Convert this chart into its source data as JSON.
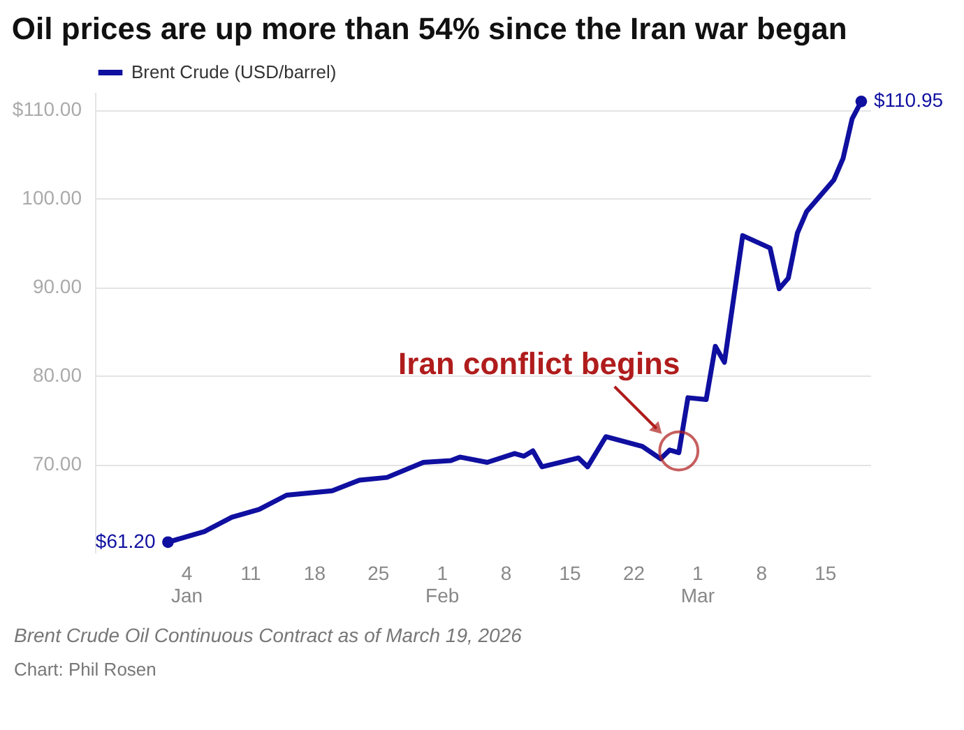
{
  "chart_data": {
    "type": "line",
    "title": "Oil prices are up more than 54% since the Iran war began",
    "x": [
      "2026-01-02",
      "2026-01-06",
      "2026-01-09",
      "2026-01-12",
      "2026-01-15",
      "2026-01-20",
      "2026-01-23",
      "2026-01-26",
      "2026-01-30",
      "2026-02-02",
      "2026-02-03",
      "2026-02-06",
      "2026-02-09",
      "2026-02-10",
      "2026-02-11",
      "2026-02-12",
      "2026-02-16",
      "2026-02-17",
      "2026-02-19",
      "2026-02-23",
      "2026-02-25",
      "2026-02-26",
      "2026-02-27",
      "2026-02-28",
      "2026-03-02",
      "2026-03-03",
      "2026-03-04",
      "2026-03-06",
      "2026-03-09",
      "2026-03-10",
      "2026-03-11",
      "2026-03-12",
      "2026-03-13",
      "2026-03-16",
      "2026-03-17",
      "2026-03-18",
      "2026-03-19"
    ],
    "series": [
      {
        "name": "Brent Crude (USD/barrel)",
        "color": "#0f0fa0",
        "values": [
          61.2,
          62.4,
          64.0,
          64.9,
          66.5,
          67.0,
          68.2,
          68.5,
          70.2,
          70.4,
          70.8,
          70.2,
          71.2,
          70.9,
          71.5,
          69.7,
          70.7,
          69.7,
          73.1,
          72.0,
          70.6,
          71.6,
          71.3,
          77.5,
          77.3,
          83.3,
          81.5,
          95.8,
          94.4,
          89.8,
          91.0,
          96.1,
          98.5,
          102.1,
          104.5,
          109.0,
          110.95
        ],
        "value_labels": [
          "$61.20",
          null,
          null,
          null,
          null,
          null,
          null,
          null,
          null,
          null,
          null,
          null,
          null,
          null,
          null,
          null,
          null,
          null,
          null,
          null,
          null,
          null,
          null,
          null,
          null,
          null,
          null,
          null,
          null,
          null,
          null,
          null,
          null,
          null,
          null,
          null,
          "$110.95"
        ]
      }
    ],
    "xlim": [
      "2025-12-25",
      "2026-03-20"
    ],
    "xticks": [
      {
        "value": "2026-01-04",
        "label": "4\nJan"
      },
      {
        "value": "2026-01-11",
        "label": "11"
      },
      {
        "value": "2026-01-18",
        "label": "18"
      },
      {
        "value": "2026-01-25",
        "label": "25"
      },
      {
        "value": "2026-02-01",
        "label": "1\nFeb"
      },
      {
        "value": "2026-02-08",
        "label": "8"
      },
      {
        "value": "2026-02-15",
        "label": "15"
      },
      {
        "value": "2026-02-22",
        "label": "22"
      },
      {
        "value": "2026-03-01",
        "label": "1\nMar"
      },
      {
        "value": "2026-03-08",
        "label": "8"
      },
      {
        "value": "2026-03-15",
        "label": "15"
      }
    ],
    "ylim": [
      60,
      112
    ],
    "yticks": [
      {
        "value": 70,
        "label": "70.00"
      },
      {
        "value": 80,
        "label": "80.00"
      },
      {
        "value": 90,
        "label": "90.00"
      },
      {
        "value": 100,
        "label": "100.00"
      },
      {
        "value": 110,
        "label": "$110.00"
      }
    ],
    "grid": "y",
    "legend": "top left",
    "marker": "none",
    "line_style": "solid",
    "annotations": [
      {
        "text": "Iran conflict begins",
        "x": "2026-02-27",
        "y": 71.5
      },
      "Brent Crude Oil Continuous Contract as of March 19, 2026",
      "Chart: Phil Rosen"
    ]
  }
}
